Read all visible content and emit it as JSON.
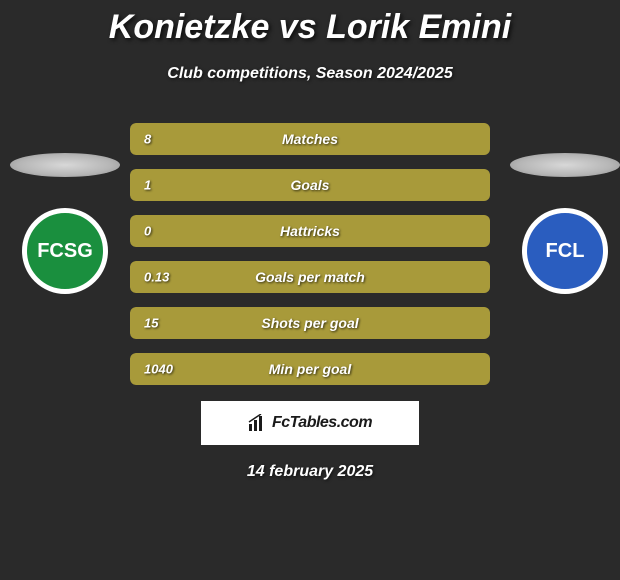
{
  "title": "Konietzke vs Lorik Emini",
  "subtitle": "Club competitions, Season 2024/2025",
  "date": "14 february 2025",
  "watermark": "FcTables.com",
  "colors": {
    "left_bar": "#a89a3a",
    "right_bar": "#3a3a3a",
    "background": "#2a2a2a"
  },
  "left_team": {
    "name": "FC St. Gallen",
    "abbr": "FCSG",
    "badge_bg": "#1a8f3e",
    "badge_border": "#ffffff"
  },
  "right_team": {
    "name": "FC Luzern",
    "abbr": "FCL",
    "badge_bg": "#2a5dbf",
    "badge_border": "#ffffff"
  },
  "stats": [
    {
      "label": "Matches",
      "left_value": "8",
      "left_pct": 100,
      "right_pct": 0
    },
    {
      "label": "Goals",
      "left_value": "1",
      "left_pct": 100,
      "right_pct": 0
    },
    {
      "label": "Hattricks",
      "left_value": "0",
      "left_pct": 100,
      "right_pct": 0
    },
    {
      "label": "Goals per match",
      "left_value": "0.13",
      "left_pct": 100,
      "right_pct": 0
    },
    {
      "label": "Shots per goal",
      "left_value": "15",
      "left_pct": 100,
      "right_pct": 0
    },
    {
      "label": "Min per goal",
      "left_value": "1040",
      "left_pct": 100,
      "right_pct": 0
    }
  ]
}
